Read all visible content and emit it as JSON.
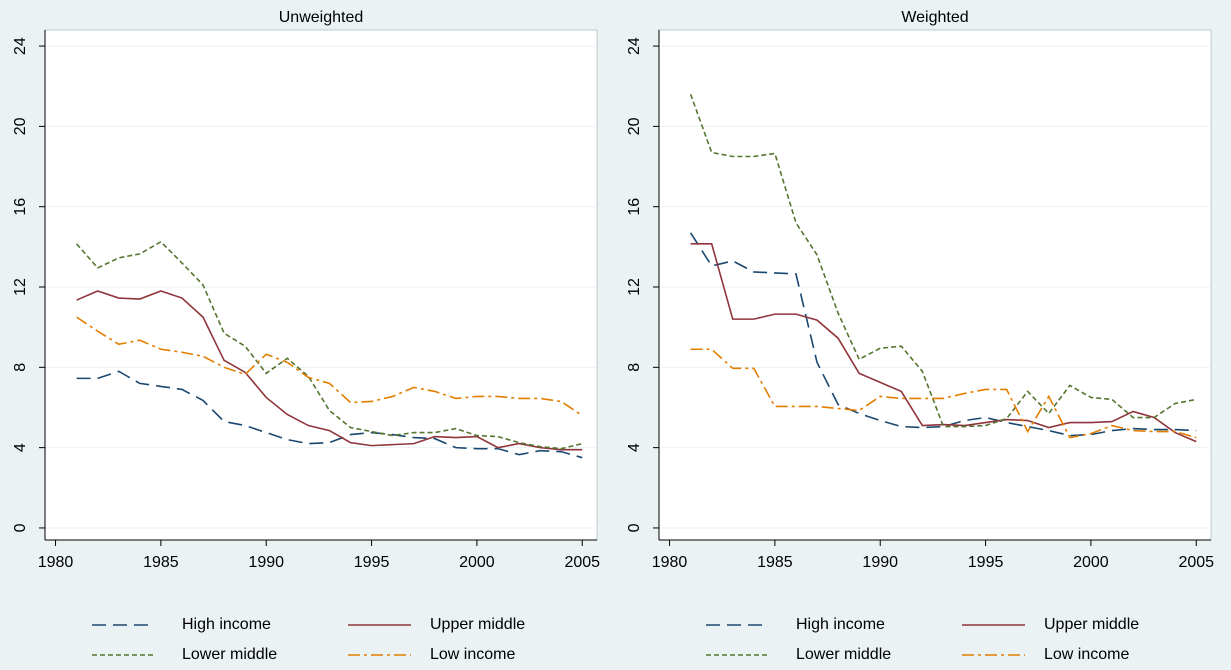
{
  "chart_data": [
    {
      "type": "line",
      "title": "Unweighted",
      "x": [
        1981,
        1982,
        1983,
        1984,
        1985,
        1986,
        1987,
        1988,
        1989,
        1990,
        1991,
        1992,
        1993,
        1994,
        1995,
        1996,
        1997,
        1998,
        1999,
        2000,
        2001,
        2002,
        2003,
        2004,
        2005
      ],
      "series": [
        {
          "name": "High income",
          "color": "#1a476f",
          "style": "long-dash",
          "values": [
            7.45,
            7.45,
            7.8,
            7.2,
            7.05,
            6.9,
            6.35,
            5.3,
            5.1,
            4.75,
            4.4,
            4.2,
            4.25,
            4.65,
            4.75,
            4.65,
            4.5,
            4.45,
            4.0,
            3.95,
            3.95,
            3.65,
            3.85,
            3.8,
            3.5
          ]
        },
        {
          "name": "Upper middle",
          "color": "#90353b",
          "style": "solid",
          "values": [
            11.35,
            11.8,
            11.45,
            11.4,
            11.8,
            11.45,
            10.5,
            8.35,
            7.75,
            6.5,
            5.65,
            5.1,
            4.85,
            4.25,
            4.1,
            4.15,
            4.2,
            4.55,
            4.5,
            4.55,
            4.0,
            4.2,
            4.0,
            3.9,
            3.9
          ]
        },
        {
          "name": "Lower middle",
          "color": "#55752f",
          "style": "short-dash",
          "values": [
            14.15,
            12.95,
            13.45,
            13.65,
            14.25,
            13.2,
            12.1,
            9.7,
            9.05,
            7.7,
            8.45,
            7.55,
            5.85,
            5.0,
            4.8,
            4.6,
            4.75,
            4.75,
            4.95,
            4.6,
            4.55,
            4.25,
            4.05,
            3.95,
            4.2
          ]
        },
        {
          "name": "Low income",
          "color": "#e37e00",
          "style": "dash-dot",
          "values": [
            10.5,
            9.8,
            9.15,
            9.35,
            8.9,
            8.75,
            8.55,
            8.0,
            7.65,
            8.65,
            8.25,
            7.5,
            7.2,
            6.25,
            6.3,
            6.55,
            7.0,
            6.8,
            6.45,
            6.55,
            6.55,
            6.45,
            6.45,
            6.3,
            5.6
          ]
        }
      ],
      "xlim": [
        1979.5,
        2005.7
      ],
      "xticks": [
        1980,
        1985,
        1990,
        1995,
        2000,
        2005
      ],
      "ylim": [
        -0.6,
        24.8
      ],
      "yticks": [
        0,
        4,
        8,
        12,
        16,
        20,
        24
      ],
      "grid": true
    },
    {
      "type": "line",
      "title": "Weighted",
      "x": [
        1981,
        1982,
        1983,
        1984,
        1985,
        1986,
        1987,
        1988,
        1989,
        1990,
        1991,
        1992,
        1993,
        1994,
        1995,
        1996,
        1997,
        1998,
        1999,
        2000,
        2001,
        2002,
        2003,
        2004,
        2005
      ],
      "series": [
        {
          "name": "High income",
          "color": "#1a476f",
          "style": "long-dash",
          "values": [
            14.7,
            13.05,
            13.3,
            12.75,
            12.7,
            12.65,
            8.25,
            6.15,
            5.7,
            5.35,
            5.05,
            5.0,
            5.05,
            5.35,
            5.5,
            5.25,
            5.05,
            4.85,
            4.6,
            4.65,
            4.85,
            4.95,
            4.9,
            4.9,
            4.85
          ]
        },
        {
          "name": "Upper middle",
          "color": "#90353b",
          "style": "solid",
          "values": [
            14.15,
            14.15,
            10.4,
            10.4,
            10.65,
            10.65,
            10.35,
            9.45,
            7.7,
            7.25,
            6.8,
            5.1,
            5.15,
            5.1,
            5.25,
            5.4,
            5.35,
            5.0,
            5.25,
            5.25,
            5.3,
            5.8,
            5.5,
            4.75,
            4.3
          ]
        },
        {
          "name": "Lower middle",
          "color": "#55752f",
          "style": "short-dash",
          "values": [
            21.6,
            18.7,
            18.5,
            18.5,
            18.65,
            15.2,
            13.6,
            10.7,
            8.4,
            8.95,
            9.05,
            7.8,
            5.05,
            5.05,
            5.1,
            5.45,
            6.8,
            5.7,
            7.1,
            6.5,
            6.4,
            5.5,
            5.5,
            6.2,
            6.4
          ]
        },
        {
          "name": "Low income",
          "color": "#e37e00",
          "style": "dash-dot",
          "values": [
            8.9,
            8.9,
            7.95,
            7.95,
            6.05,
            6.05,
            6.05,
            5.95,
            5.85,
            6.55,
            6.45,
            6.45,
            6.45,
            6.7,
            6.9,
            6.9,
            4.8,
            6.55,
            4.5,
            4.7,
            5.1,
            4.85,
            4.8,
            4.8,
            4.5
          ]
        }
      ],
      "xlim": [
        1979.5,
        2005.7
      ],
      "xticks": [
        1980,
        1985,
        1990,
        1995,
        2000,
        2005
      ],
      "ylim": [
        -0.6,
        24.8
      ],
      "yticks": [
        0,
        4,
        8,
        12,
        16,
        20,
        24
      ],
      "grid": true
    }
  ]
}
